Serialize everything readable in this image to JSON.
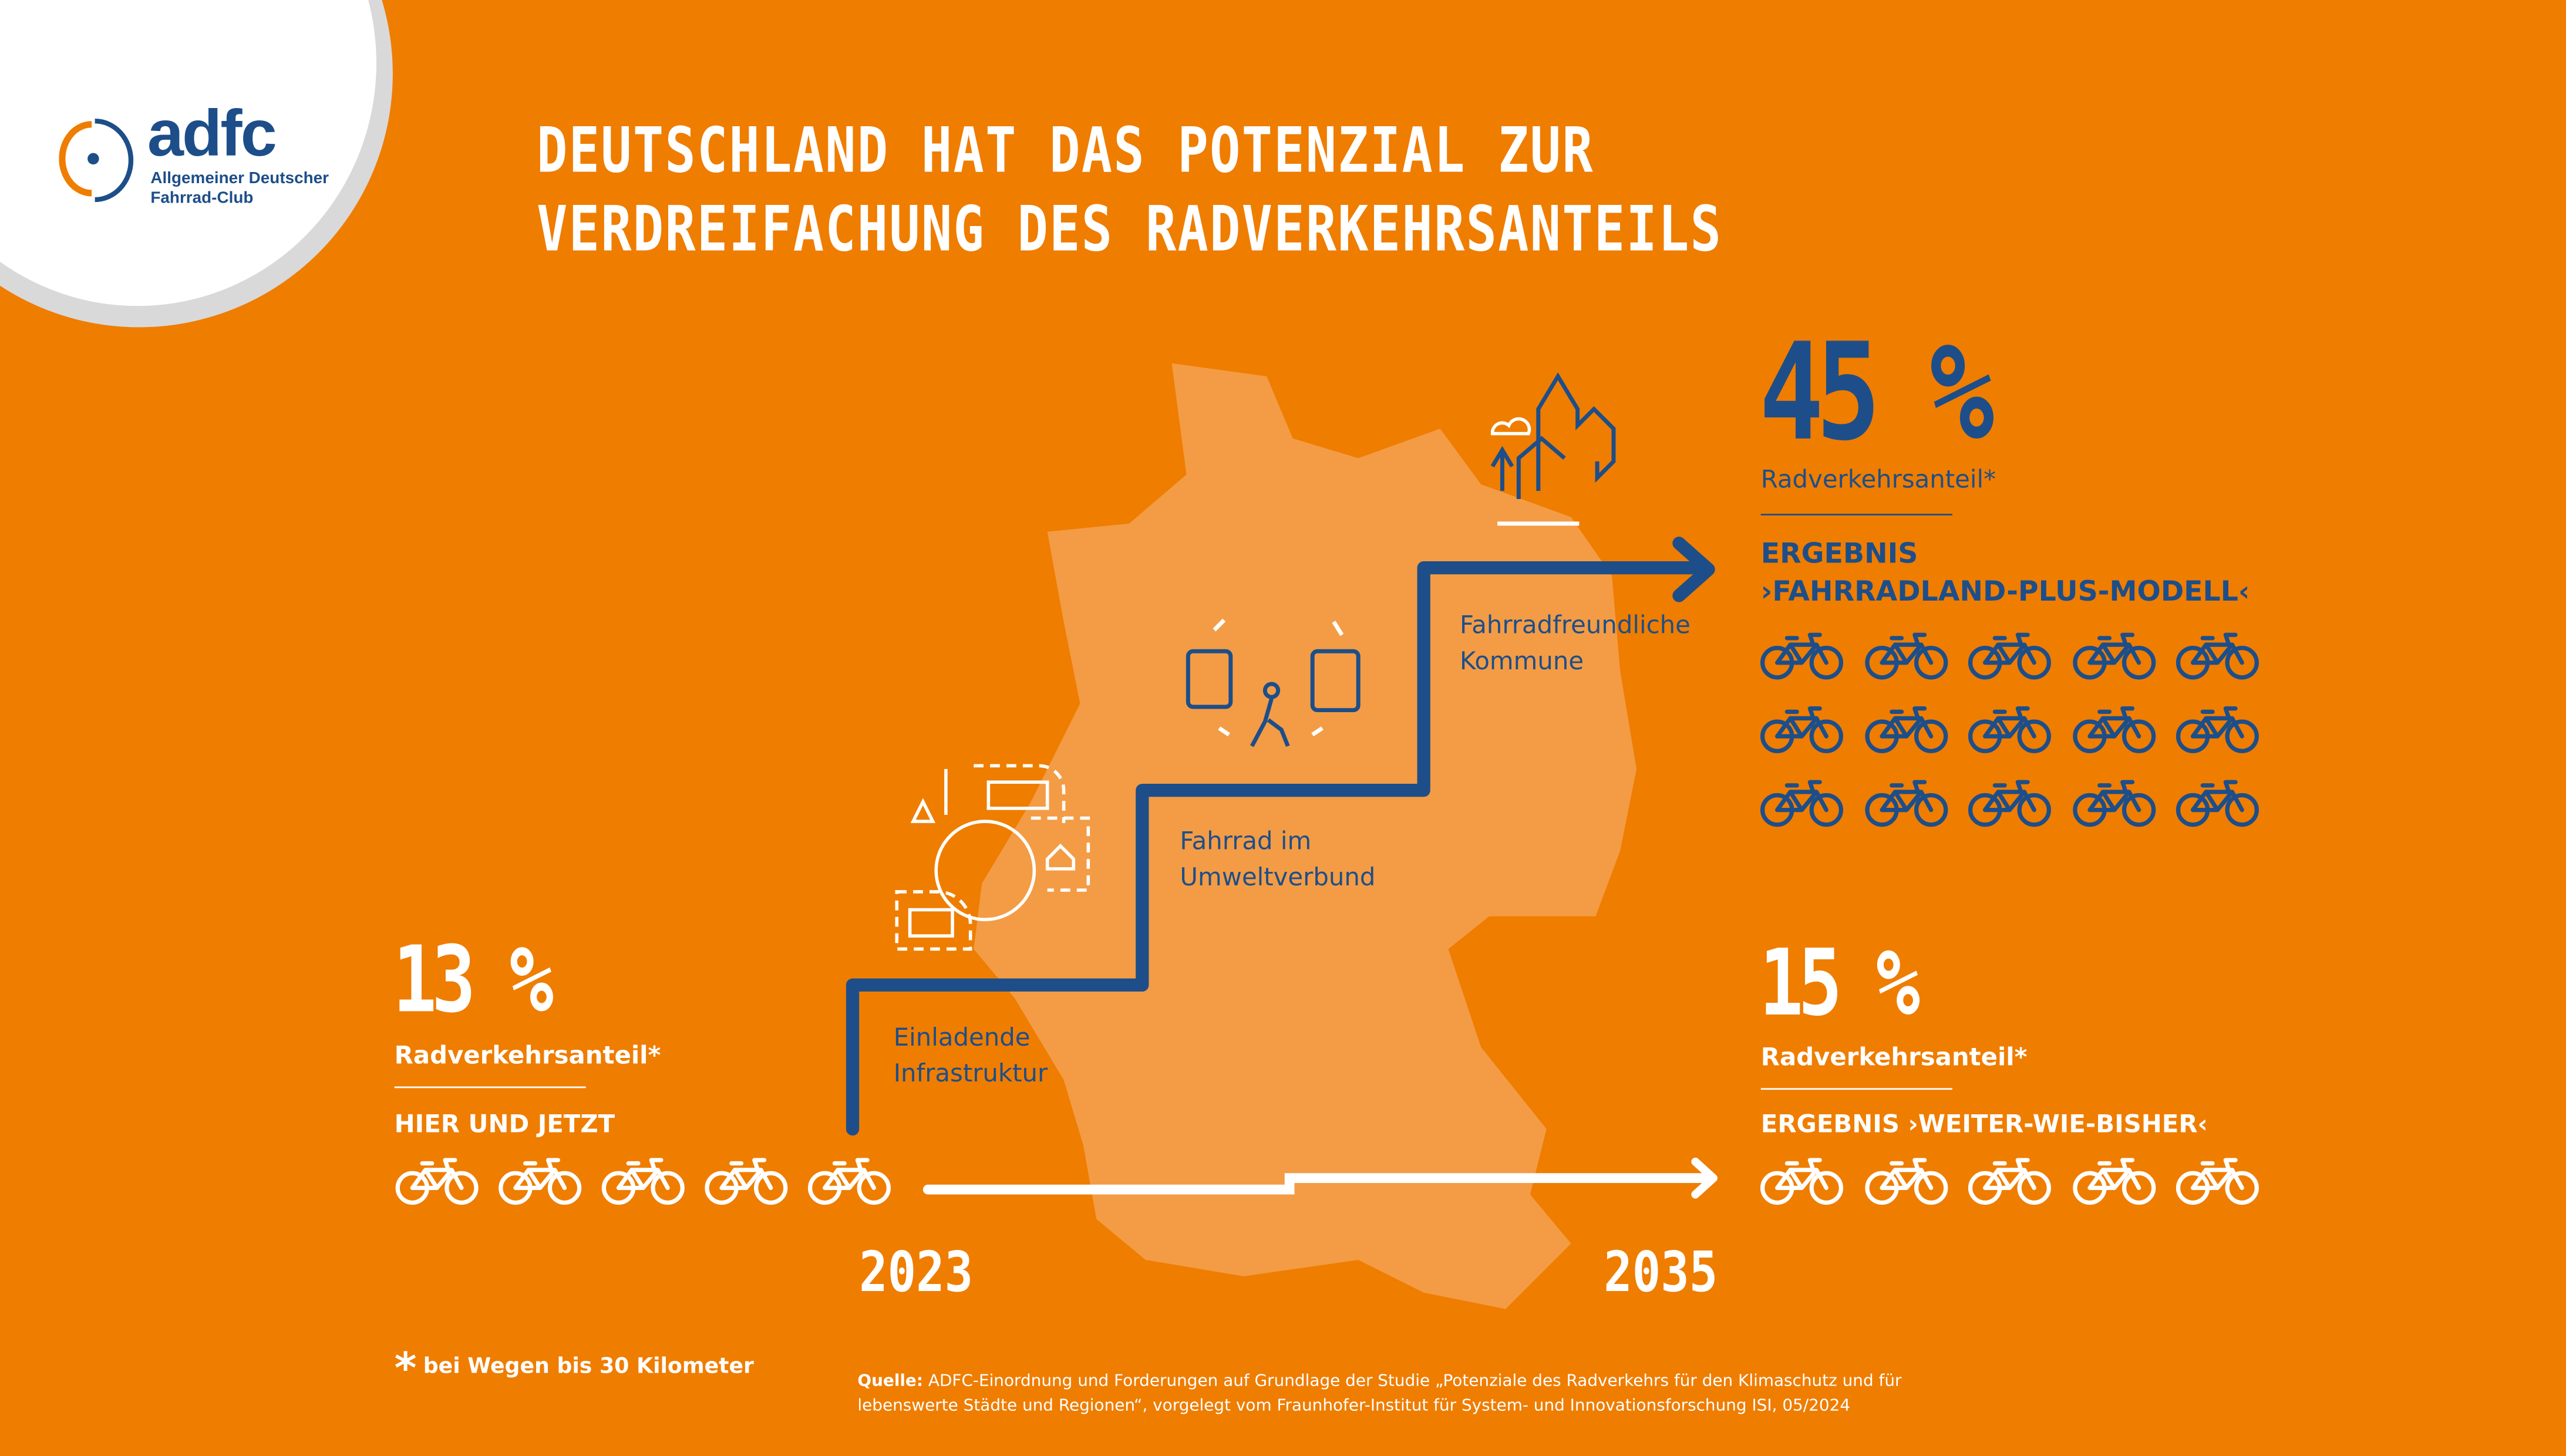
{
  "logo": {
    "wordmark": "adfc",
    "subtitle_line1": "Allgemeiner Deutscher",
    "subtitle_line2": "Fahrrad-Club"
  },
  "title": {
    "line1": "DEUTSCHLAND HAT DAS POTENZIAL ZUR",
    "line2": "VERDREIFACHUNG DES RADVERKEHRSANTEILS"
  },
  "current": {
    "value": "13 %",
    "label": "Radverkehrsanteil*",
    "caption": "HIER UND JETZT",
    "bikes": 5,
    "year": "2023"
  },
  "plus_model": {
    "value": "45 %",
    "label": "Radverkehrsanteil*",
    "caption_line1": "ERGEBNIS",
    "caption_line2": "›FAHRRADLAND-PLUS-MODELL‹",
    "bikes": 15
  },
  "baseline": {
    "value": "15 %",
    "label": "Radverkehrsanteil*",
    "caption": "ERGEBNIS ›WEITER-WIE-BISHER‹",
    "bikes": 5,
    "year": "2035"
  },
  "steps": [
    {
      "line1": "Einladende",
      "line2": "Infrastruktur"
    },
    {
      "line1": "Fahrrad im",
      "line2": "Umweltverbund"
    },
    {
      "line1": "Fahrradfreundliche",
      "line2": "Kommune"
    }
  ],
  "footnote": {
    "star": "*",
    "text": "bei Wegen bis 30 Kilometer"
  },
  "source": {
    "label": "Quelle:",
    "text": "ADFC-Einordnung und Forderungen auf Grundlage der Studie „Potenziale des Radverkehrs für den Klimaschutz und für lebenswerte Städte und Regionen“, vorgelegt vom Fraunhofer-Institut für System- und Innovationsforschung ISI, 05/2024"
  },
  "colors": {
    "background": "#EF7D00",
    "map": "#F39C45",
    "navy": "#1D4E89",
    "white": "#FFFFFF"
  }
}
